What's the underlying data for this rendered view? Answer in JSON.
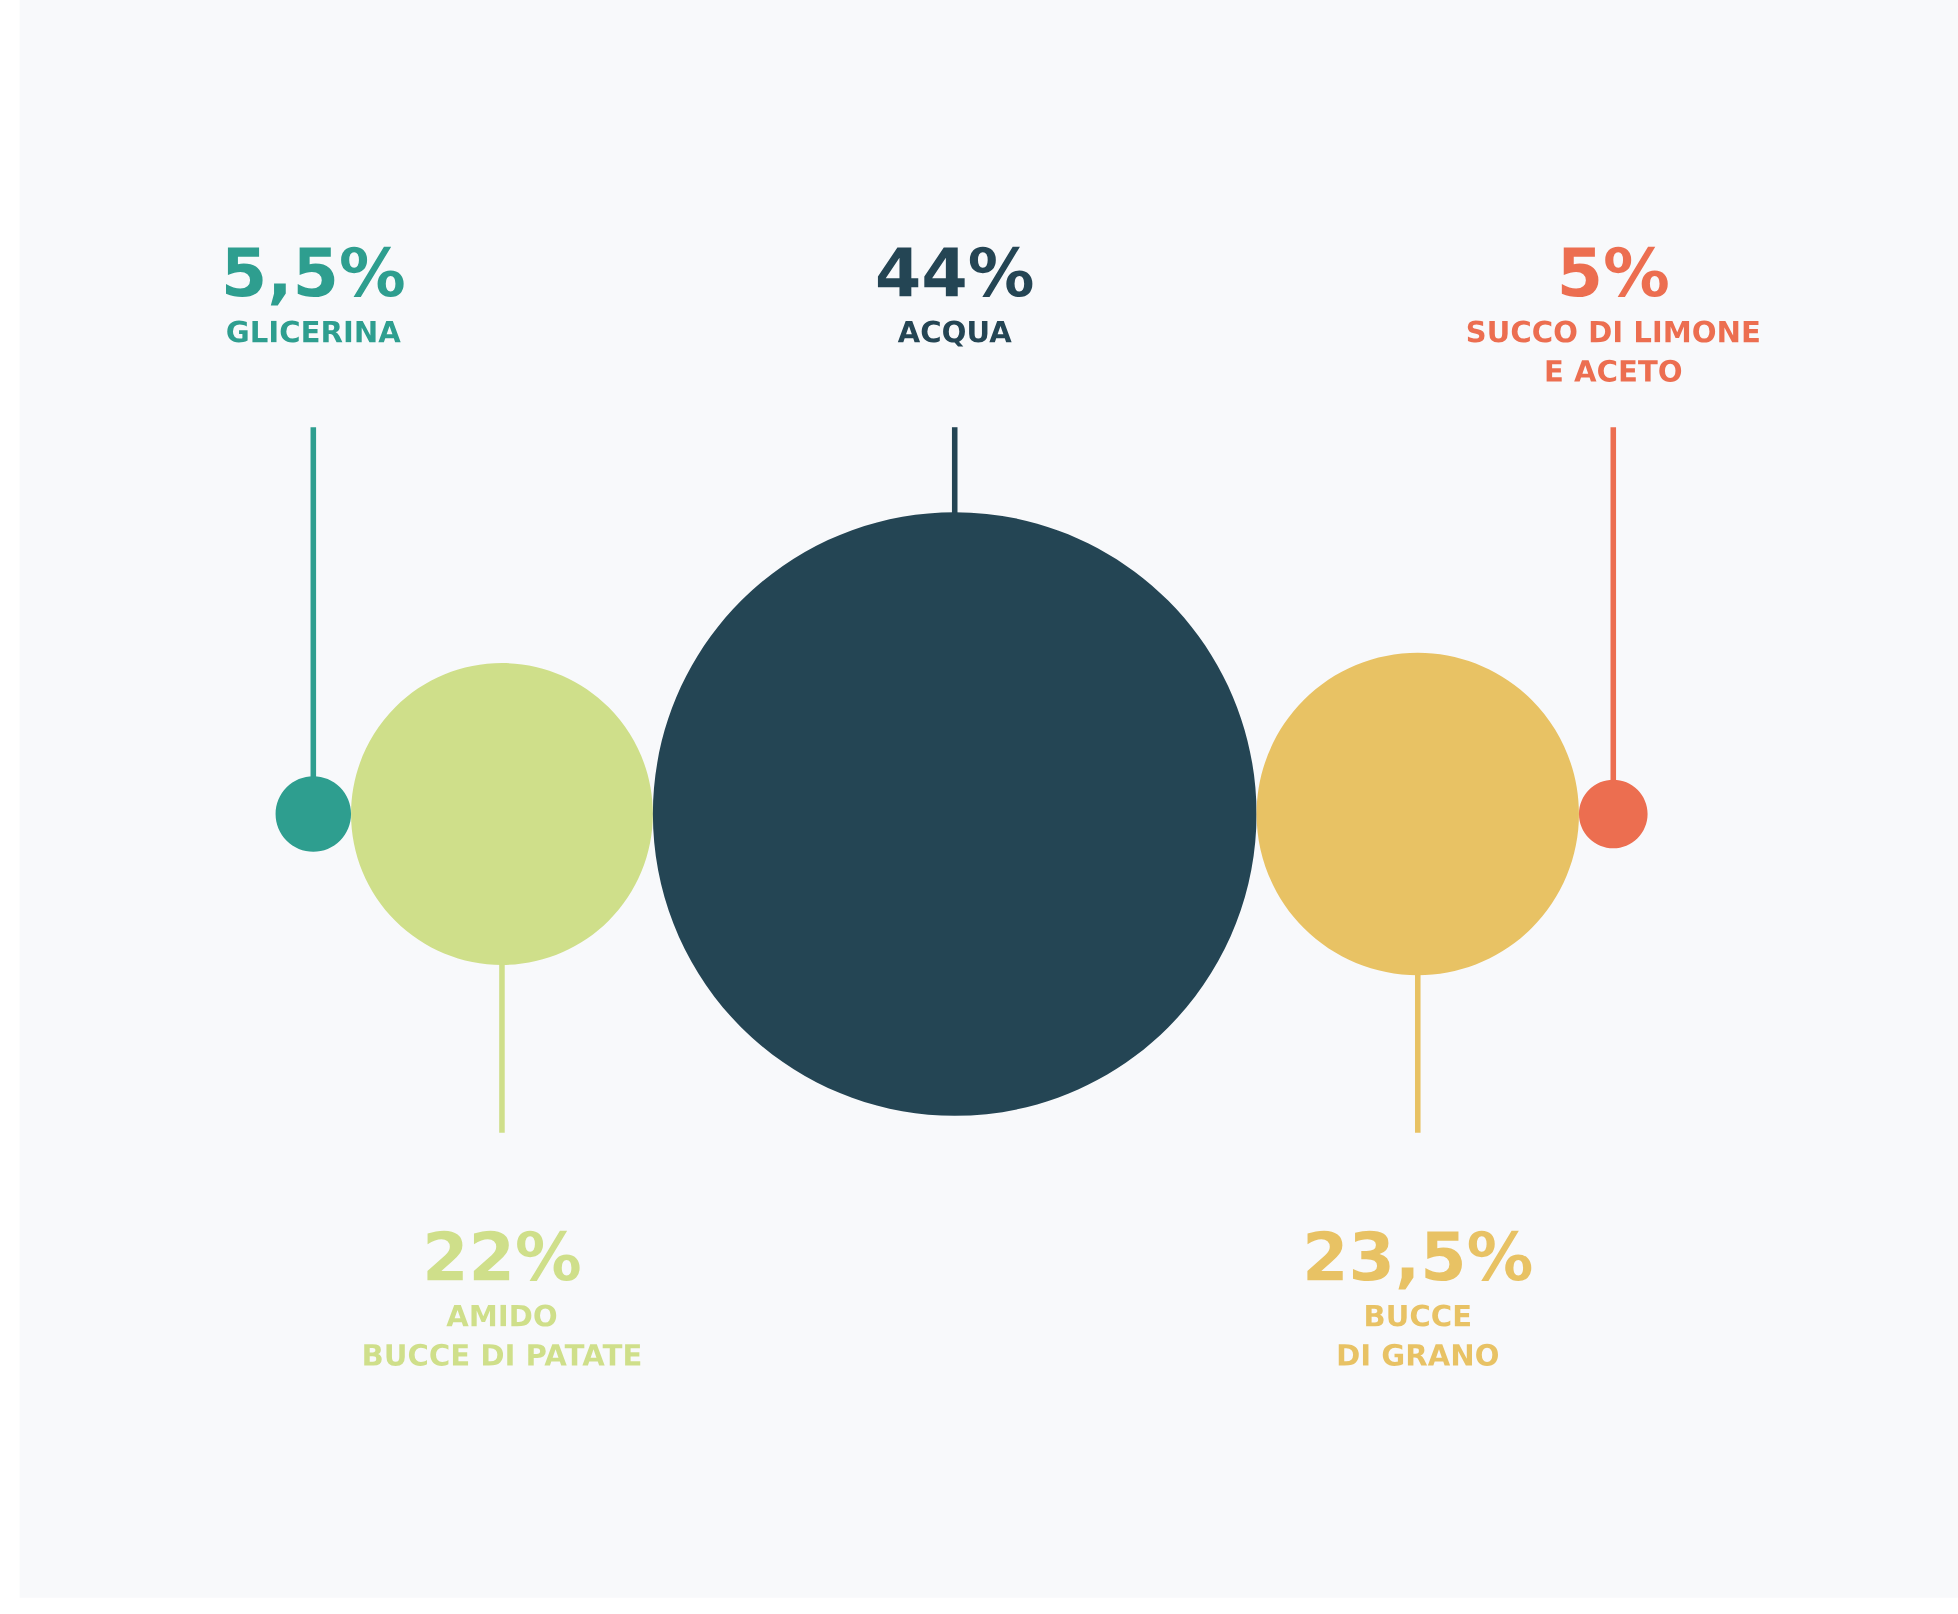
{
  "chart_data": {
    "type": "other",
    "categories": [
      "GLICERINA",
      "AMIDO\nBUCCE DI PATATE",
      "ACQUA",
      "BUCCE\nDI GRANO",
      "SUCCO DI LIMONE\nE ACETO"
    ],
    "values": [
      5.5,
      22,
      44,
      23.5,
      5
    ],
    "value_labels": [
      "5,5%",
      "22%",
      "44%",
      "23,5%",
      "5%"
    ],
    "colors": [
      "#2e9e8f",
      "#cfdf8a",
      "#244554",
      "#e8c264",
      "#ec6e50"
    ]
  }
}
